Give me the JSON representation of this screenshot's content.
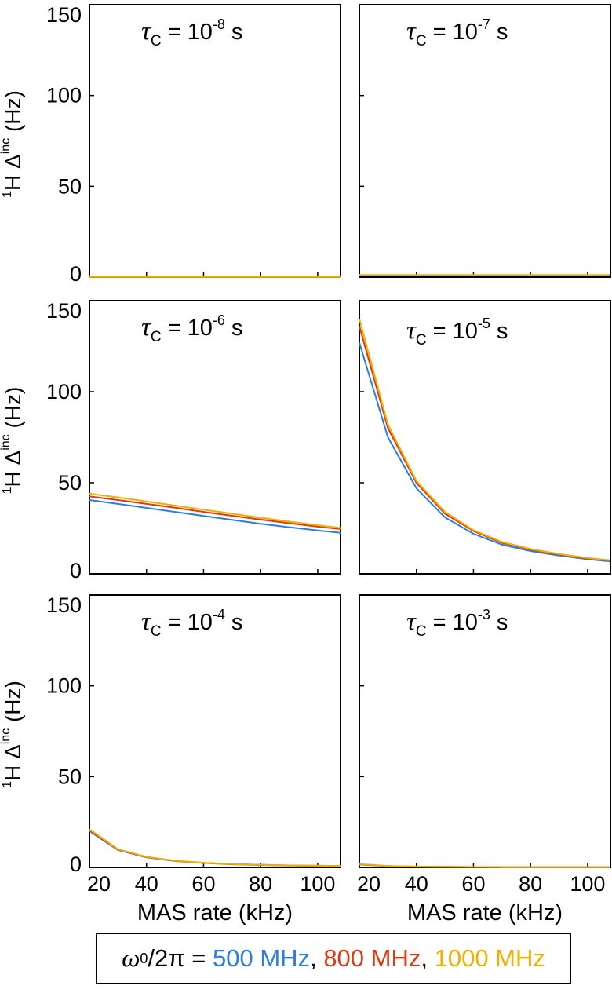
{
  "chart_data": {
    "type": "line",
    "layout": "3x2 grid of panels, shared axes",
    "xlabel": "MAS rate (kHz)",
    "ylabel_prefix": "1",
    "ylabel_main": "H Δ",
    "ylabel_sup": "inc",
    "ylabel_units": "(Hz)",
    "xlim": [
      20,
      108
    ],
    "ylim": [
      0,
      150
    ],
    "xticks": [
      "20",
      "40",
      "60",
      "80",
      "100"
    ],
    "yticks": [
      "0",
      "50",
      "100",
      "150"
    ],
    "grid": false,
    "series_colors": [
      "#2c7fe0",
      "#e03a12",
      "#f0b000"
    ],
    "legend": {
      "symbol": "ω",
      "subscript": "0",
      "suffix": "/2π =",
      "entries": [
        "500 MHz",
        "800 MHz",
        "1000 MHz"
      ],
      "separator": ",",
      "placement": "bottom-center"
    },
    "x": [
      20,
      30,
      40,
      50,
      60,
      70,
      80,
      90,
      100,
      108
    ],
    "panels": [
      {
        "label_sym": "τ",
        "label_sub": "C",
        "label_mid": " = 10",
        "label_exp": "-8",
        "label_unit": " s",
        "series": [
          {
            "name": "500 MHz",
            "values": [
              0.1,
              0.1,
              0.1,
              0.1,
              0.1,
              0.1,
              0.1,
              0.1,
              0.1,
              0.1
            ]
          },
          {
            "name": "800 MHz",
            "values": [
              0.1,
              0.1,
              0.1,
              0.1,
              0.1,
              0.1,
              0.1,
              0.1,
              0.1,
              0.1
            ]
          },
          {
            "name": "1000 MHz",
            "values": [
              0.1,
              0.1,
              0.1,
              0.1,
              0.1,
              0.1,
              0.1,
              0.1,
              0.1,
              0.1
            ]
          }
        ]
      },
      {
        "label_sym": "τ",
        "label_sub": "C",
        "label_mid": " = 10",
        "label_exp": "-7",
        "label_unit": " s",
        "series": [
          {
            "name": "500 MHz",
            "values": [
              1.0,
              1.0,
              1.0,
              1.0,
              1.0,
              1.0,
              1.0,
              1.0,
              1.0,
              1.0
            ]
          },
          {
            "name": "800 MHz",
            "values": [
              1.1,
              1.1,
              1.1,
              1.1,
              1.1,
              1.1,
              1.1,
              1.1,
              1.1,
              1.1
            ]
          },
          {
            "name": "1000 MHz",
            "values": [
              1.2,
              1.2,
              1.2,
              1.2,
              1.2,
              1.2,
              1.2,
              1.2,
              1.2,
              1.2
            ]
          }
        ]
      },
      {
        "label_sym": "τ",
        "label_sub": "C",
        "label_mid": " = 10",
        "label_exp": "-6",
        "label_unit": " s",
        "series": [
          {
            "name": "500 MHz",
            "values": [
              40.5,
              38.4,
              36.2,
              34.0,
              31.8,
              29.6,
              27.5,
              25.6,
              23.8,
              22.5
            ]
          },
          {
            "name": "800 MHz",
            "values": [
              42.5,
              40.5,
              38.4,
              36.3,
              34.0,
              31.9,
              29.8,
              27.8,
              25.9,
              24.6
            ]
          },
          {
            "name": "1000 MHz",
            "values": [
              44.0,
              42.0,
              39.8,
              37.5,
              35.2,
              33.0,
              30.8,
              28.7,
              26.7,
              25.2
            ]
          }
        ]
      },
      {
        "label_sym": "τ",
        "label_sub": "C",
        "label_mid": " = 10",
        "label_exp": "-5",
        "label_unit": " s",
        "series": [
          {
            "name": "500 MHz",
            "values": [
              127,
              75,
              47,
              31,
              22,
              16,
              12.5,
              10,
              8,
              6.8
            ]
          },
          {
            "name": "800 MHz",
            "values": [
              136,
              80,
              50,
              33,
              23.5,
              17,
              13.3,
              10.6,
              8.5,
              7.2
            ]
          },
          {
            "name": "1000 MHz",
            "values": [
              140,
              82,
              51,
              34,
              24,
              17.5,
              13.6,
              10.9,
              8.7,
              7.4
            ]
          }
        ]
      },
      {
        "label_sym": "τ",
        "label_sub": "C",
        "label_mid": " = 10",
        "label_exp": "-4",
        "label_unit": " s",
        "series": [
          {
            "name": "500 MHz",
            "values": [
              20.0,
              9.5,
              5.5,
              3.5,
              2.4,
              1.7,
              1.3,
              1.0,
              0.8,
              0.7
            ]
          },
          {
            "name": "800 MHz",
            "values": [
              20.5,
              9.8,
              5.7,
              3.6,
              2.5,
              1.8,
              1.4,
              1.1,
              0.9,
              0.8
            ]
          },
          {
            "name": "1000 MHz",
            "values": [
              21.0,
              10.0,
              5.8,
              3.7,
              2.5,
              1.8,
              1.4,
              1.1,
              0.9,
              0.8
            ]
          }
        ]
      },
      {
        "label_sym": "τ",
        "label_sub": "C",
        "label_mid": " = 10",
        "label_exp": "-3",
        "label_unit": " s",
        "series": [
          {
            "name": "500 MHz",
            "values": [
              1.6,
              0.7,
              0.4,
              0.3,
              0.2,
              0.15,
              0.1,
              0.1,
              0.1,
              0.1
            ]
          },
          {
            "name": "800 MHz",
            "values": [
              1.7,
              0.75,
              0.42,
              0.3,
              0.2,
              0.15,
              0.1,
              0.1,
              0.1,
              0.1
            ]
          },
          {
            "name": "1000 MHz",
            "values": [
              1.8,
              0.8,
              0.45,
              0.3,
              0.2,
              0.15,
              0.1,
              0.1,
              0.1,
              0.1
            ]
          }
        ]
      }
    ]
  }
}
